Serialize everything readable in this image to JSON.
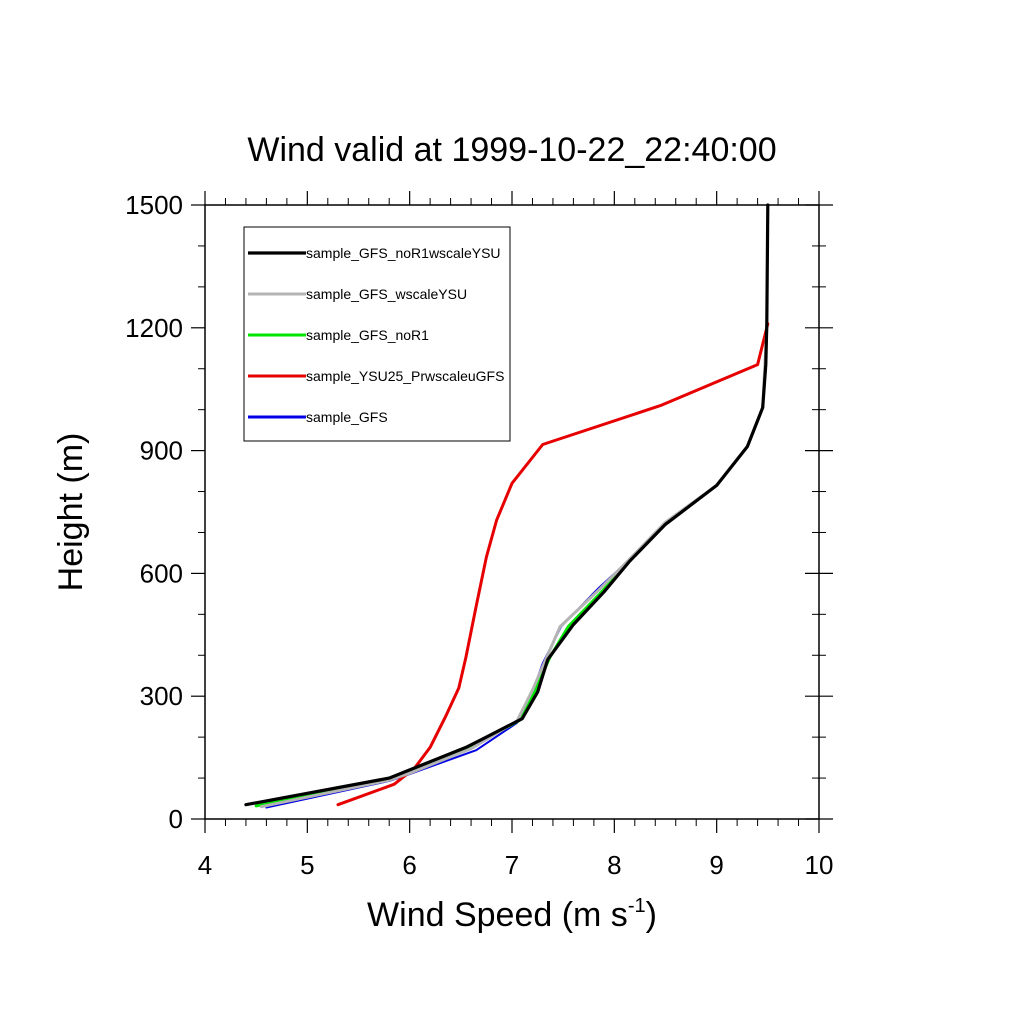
{
  "chart_data": {
    "type": "line",
    "title": "Wind valid at 1999-10-22_22:40:00",
    "xlabel": "Wind Speed (m s",
    "xlabel_sup": "-1",
    "xlabel_close": ")",
    "ylabel": "Height (m)",
    "xlim": [
      4,
      10
    ],
    "ylim": [
      0,
      1500
    ],
    "xticks": [
      4,
      5,
      6,
      7,
      8,
      9,
      10
    ],
    "yticks": [
      0,
      300,
      600,
      900,
      1200,
      1500
    ],
    "legend_position": "top-left",
    "series": [
      {
        "name": "sample_GFS_noR1wscaleYSU",
        "color": "#000000",
        "points": [
          [
            4.4,
            35
          ],
          [
            5.8,
            100
          ],
          [
            6.0,
            120
          ],
          [
            6.55,
            175
          ],
          [
            6.75,
            200
          ],
          [
            7.1,
            245
          ],
          [
            7.25,
            310
          ],
          [
            7.35,
            390
          ],
          [
            7.6,
            475
          ],
          [
            7.9,
            555
          ],
          [
            8.15,
            630
          ],
          [
            8.5,
            720
          ],
          [
            9.0,
            815
          ],
          [
            9.3,
            910
          ],
          [
            9.45,
            1005
          ],
          [
            9.48,
            1110
          ],
          [
            9.49,
            1210
          ],
          [
            9.5,
            1500
          ]
        ]
      },
      {
        "name": "sample_GFS_wscaleYSU",
        "color": "#b4b4b4",
        "points": [
          [
            4.55,
            30
          ],
          [
            5.8,
            95
          ],
          [
            6.0,
            112
          ],
          [
            6.6,
            172
          ],
          [
            7.05,
            240
          ],
          [
            7.2,
            315
          ],
          [
            7.33,
            390
          ],
          [
            7.47,
            470
          ],
          [
            7.85,
            560
          ],
          [
            8.15,
            635
          ],
          [
            8.5,
            725
          ],
          [
            9.0,
            815
          ],
          [
            9.3,
            910
          ],
          [
            9.45,
            1005
          ],
          [
            9.49,
            1200
          ]
        ]
      },
      {
        "name": "sample_GFS_noR1",
        "color": "#00e600",
        "points": [
          [
            4.5,
            32
          ],
          [
            5.8,
            98
          ],
          [
            6.0,
            116
          ],
          [
            6.58,
            173
          ],
          [
            7.08,
            242
          ],
          [
            7.22,
            312
          ],
          [
            7.37,
            395
          ],
          [
            7.55,
            470
          ],
          [
            7.88,
            556
          ],
          [
            8.15,
            632
          ],
          [
            8.5,
            722
          ],
          [
            9.0,
            815
          ]
        ]
      },
      {
        "name": "sample_YSU25_PrwscaleuGFS",
        "color": "#e60000",
        "points": [
          [
            5.3,
            35
          ],
          [
            5.85,
            85
          ],
          [
            6.05,
            125
          ],
          [
            6.2,
            175
          ],
          [
            6.35,
            250
          ],
          [
            6.48,
            320
          ],
          [
            6.55,
            395
          ],
          [
            6.65,
            520
          ],
          [
            6.75,
            640
          ],
          [
            6.85,
            730
          ],
          [
            7.0,
            820
          ],
          [
            7.3,
            915
          ],
          [
            8.45,
            1010
          ],
          [
            9.4,
            1110
          ],
          [
            9.5,
            1210
          ]
        ]
      },
      {
        "name": "sample_GFS",
        "color": "#0000e6",
        "points": [
          [
            4.6,
            28
          ],
          [
            5.8,
            93
          ],
          [
            6.0,
            110
          ],
          [
            6.65,
            168
          ],
          [
            7.05,
            235
          ],
          [
            7.2,
            310
          ],
          [
            7.3,
            380
          ],
          [
            7.48,
            470
          ],
          [
            7.85,
            565
          ],
          [
            8.2,
            645
          ],
          [
            8.5,
            725
          ]
        ]
      }
    ]
  }
}
